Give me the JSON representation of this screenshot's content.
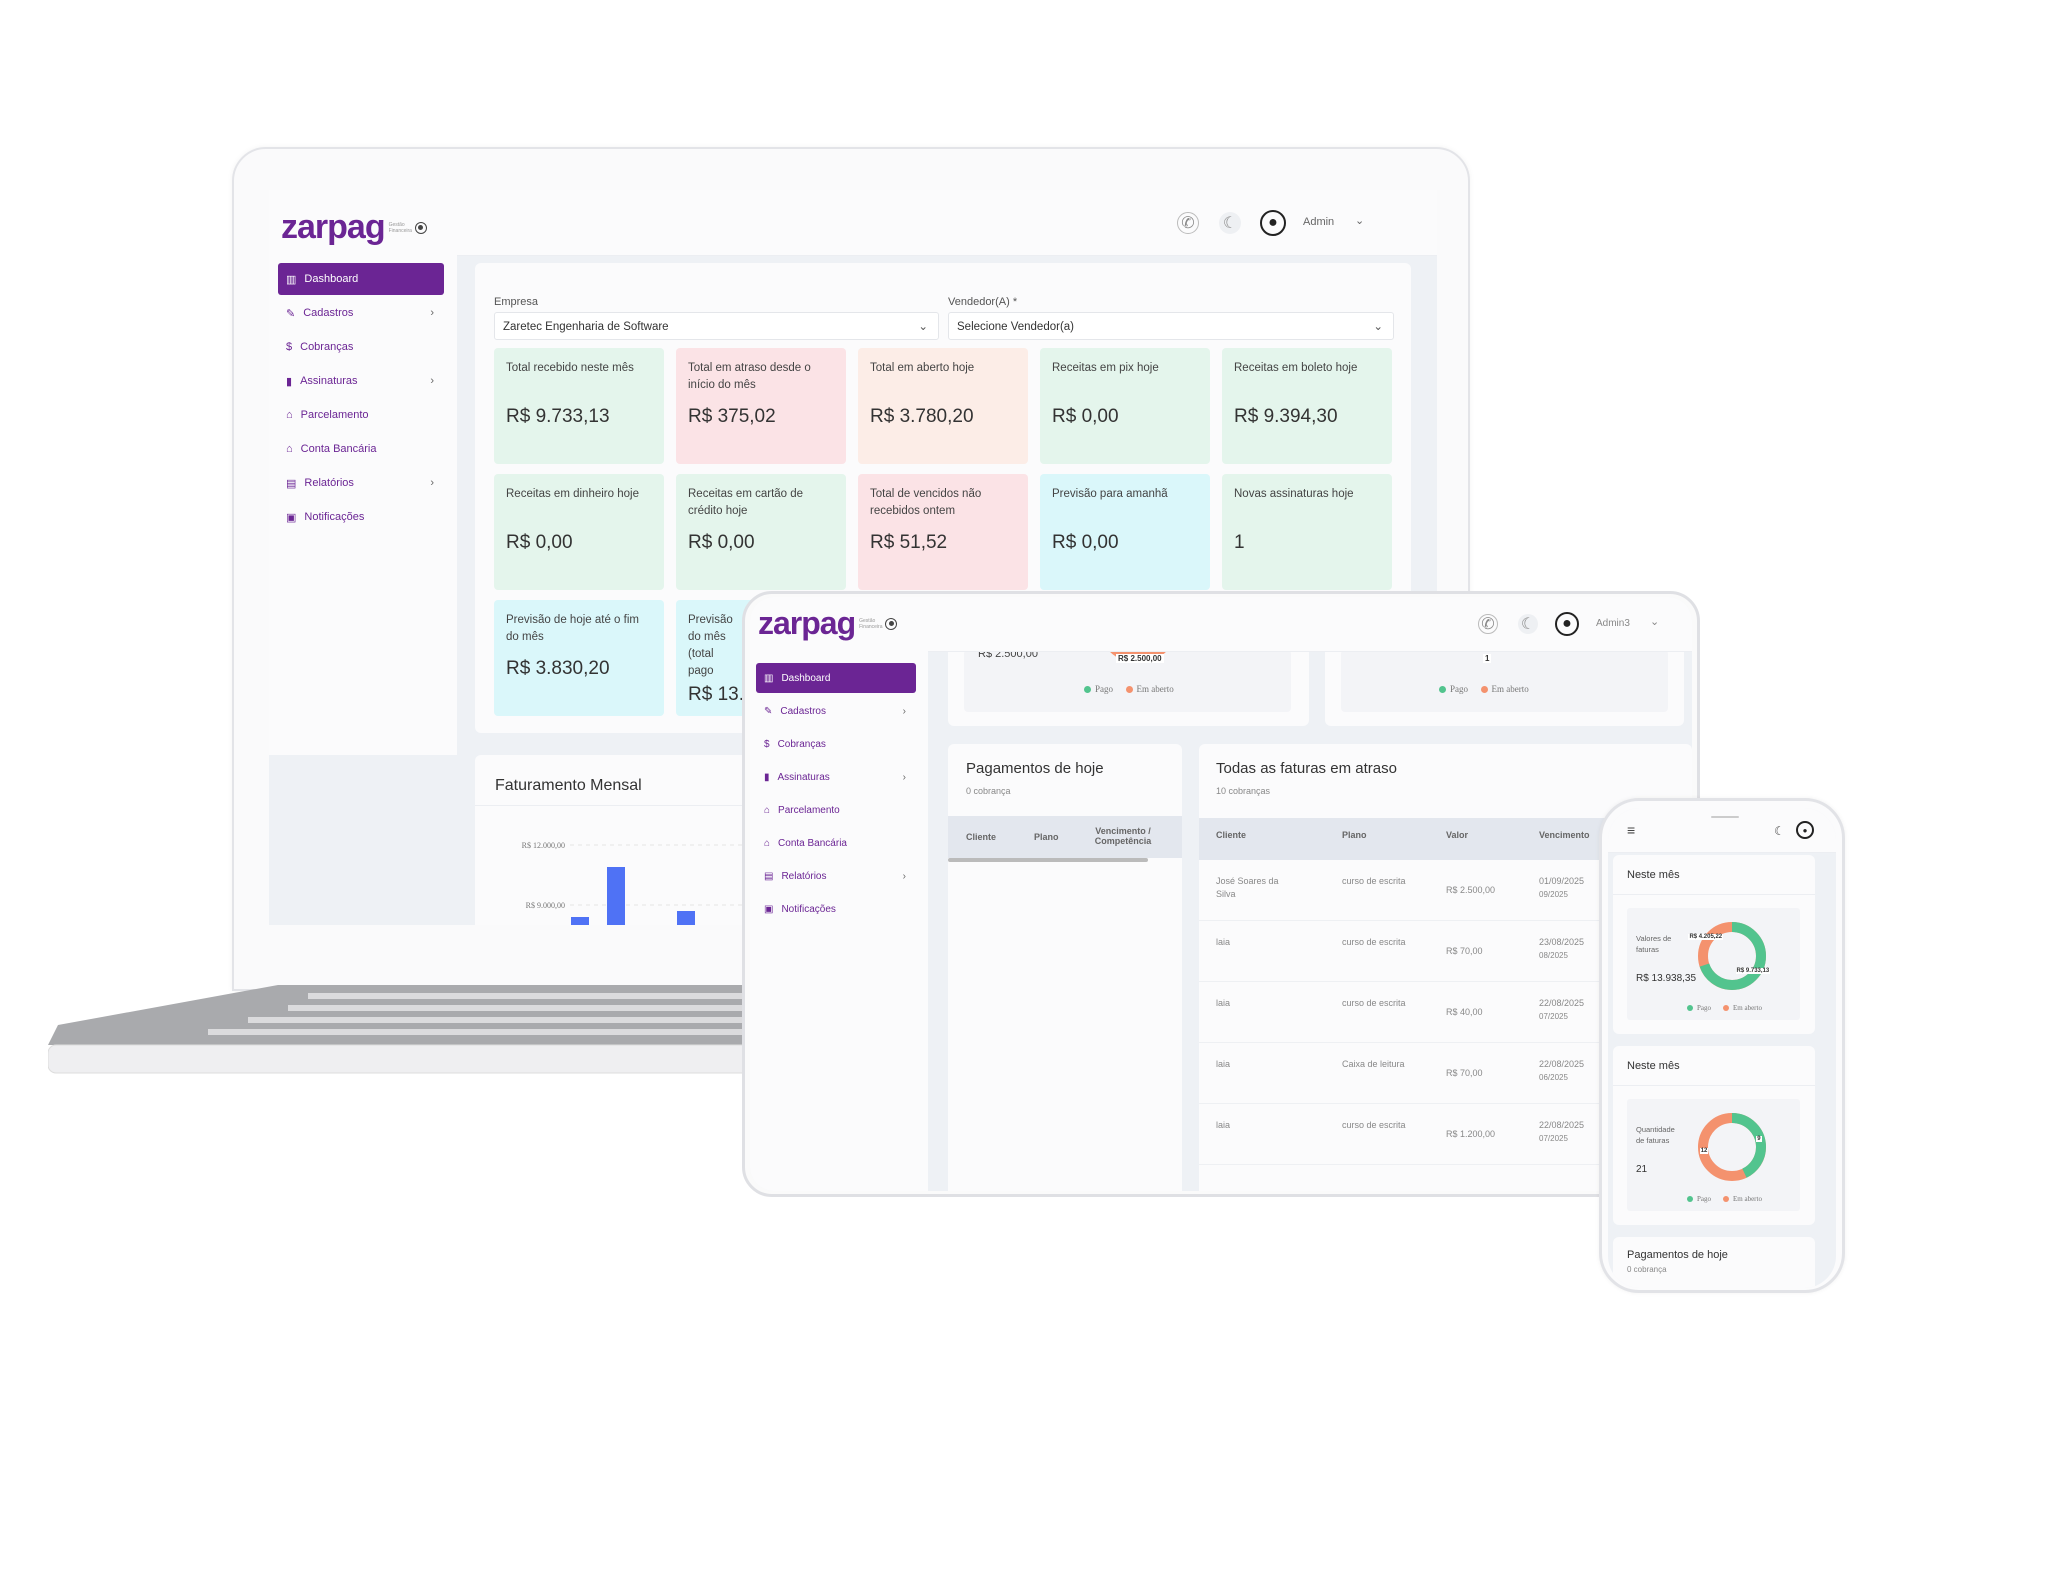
{
  "brand": {
    "name": "zarpag",
    "tagline": "Gestão Financeira",
    "accent": "#6b2594"
  },
  "header": {
    "user": "Admin",
    "user_tablet": "Admin3"
  },
  "sidebar": {
    "items": [
      {
        "label": "Dashboard",
        "icon": "chart-icon",
        "glyph": "▥",
        "active": true,
        "chevron": false
      },
      {
        "label": "Cadastros",
        "icon": "document-edit-icon",
        "glyph": "✎",
        "active": false,
        "chevron": true
      },
      {
        "label": "Cobranças",
        "icon": "dollar-icon",
        "glyph": "$",
        "active": false,
        "chevron": false
      },
      {
        "label": "Assinaturas",
        "icon": "book-icon",
        "glyph": "▮",
        "active": false,
        "chevron": true
      },
      {
        "label": "Parcelamento",
        "icon": "house-icon",
        "glyph": "⌂",
        "active": false,
        "chevron": false
      },
      {
        "label": "Conta Bancária",
        "icon": "bank-icon",
        "glyph": "⌂",
        "active": false,
        "chevron": false
      },
      {
        "label": "Relatórios",
        "icon": "report-icon",
        "glyph": "▤",
        "active": false,
        "chevron": true
      },
      {
        "label": "Notificações",
        "icon": "notification-icon",
        "glyph": "▣",
        "active": false,
        "chevron": false
      }
    ]
  },
  "filters": {
    "empresa_label": "Empresa",
    "empresa_value": "Zaretec Engenharia de Software",
    "vendedor_label": "Vendedor(A) *",
    "vendedor_value": "Selecione Vendedor(a)"
  },
  "cards": [
    {
      "label": "Total recebido neste mês",
      "value": "R$ 9.733,13",
      "color": "#e4f5ec"
    },
    {
      "label": "Total em atraso desde o início do mês",
      "value": "R$ 375,02",
      "color": "#fbe3e6"
    },
    {
      "label": "Total em aberto hoje",
      "value": "R$ 3.780,20",
      "color": "#fcede7"
    },
    {
      "label": "Receitas em pix hoje",
      "value": "R$ 0,00",
      "color": "#e4f5ec"
    },
    {
      "label": "Receitas em boleto hoje",
      "value": "R$ 9.394,30",
      "color": "#e4f5ec"
    },
    {
      "label": "Receitas em dinheiro hoje",
      "value": "R$ 0,00",
      "color": "#e4f5ec"
    },
    {
      "label": "Receitas em cartão de crédito hoje",
      "value": "R$ 0,00",
      "color": "#e4f5ec"
    },
    {
      "label": "Total de vencidos não recebidos ontem",
      "value": "R$ 51,52",
      "color": "#fbe3e6"
    },
    {
      "label": "Previsão para amanhã",
      "value": "R$ 0,00",
      "color": "#daf7fa"
    },
    {
      "label": "Novas assinaturas hoje",
      "value": "1",
      "color": "#e4f5ec"
    },
    {
      "label": "Previsão de hoje até o fim do mês",
      "value": "R$ 3.830,20",
      "color": "#daf7fa"
    },
    {
      "label": "Previsão do mês (total pago",
      "value": "R$ 13.",
      "color": "#daf7fa"
    }
  ],
  "chart_data": {
    "type": "bar",
    "title": "Faturamento Mensal",
    "yticks": [
      "R$ 12.000,00",
      "R$ 9.000,00"
    ],
    "values": [
      8400,
      10900,
      8700
    ],
    "ylim": [
      8000,
      13000
    ],
    "grid": true,
    "color": "#4f72f5"
  },
  "tablet": {
    "donut_top": {
      "label1": "R$ 2.500,00",
      "value_label1": "R$ 2.500,00",
      "value_label2": "1"
    },
    "legend": {
      "paid": "Pago",
      "open": "Em aberto",
      "paid_color": "#52c48e",
      "open_color": "#f4926e"
    },
    "payments_today": {
      "title": "Pagamentos de hoje",
      "count": "0 cobrança",
      "columns": [
        "Cliente",
        "Plano",
        "Vencimento / Competência"
      ]
    },
    "overdue": {
      "title": "Todas as faturas em atraso",
      "count": "10 cobranças",
      "columns": [
        "Cliente",
        "Plano",
        "Valor",
        "Vencimento"
      ],
      "rows": [
        [
          "José Soares da Silva",
          "curso de escrita",
          "R$ 2.500,00",
          "01/09/2025",
          "09/2025"
        ],
        [
          "laia",
          "curso de escrita",
          "R$ 70,00",
          "23/08/2025",
          "08/2025"
        ],
        [
          "laia",
          "curso de escrita",
          "R$ 40,00",
          "22/08/2025",
          "07/2025"
        ],
        [
          "laia",
          "Caixa de leitura",
          "R$ 70,00",
          "22/08/2025",
          "06/2025"
        ],
        [
          "laia",
          "curso de escrita",
          "R$ 1.200,00",
          "22/08/2025",
          "07/2025"
        ]
      ]
    }
  },
  "phone": {
    "card1": {
      "title": "Neste mês",
      "label": "Valores de faturas",
      "total": "R$ 13.938,35",
      "paid": 9733.13,
      "open": 4205.22,
      "paid_label": "R$ 9.733,13",
      "open_label": "R$ 4.205,22"
    },
    "card2": {
      "title": "Neste mês",
      "label": "Quantidade de faturas",
      "total": "21",
      "paid": 9,
      "open": 12,
      "paid_label": "9",
      "open_label": "12"
    },
    "card3": {
      "title": "Pagamentos de hoje",
      "count": "0 cobrança"
    }
  }
}
